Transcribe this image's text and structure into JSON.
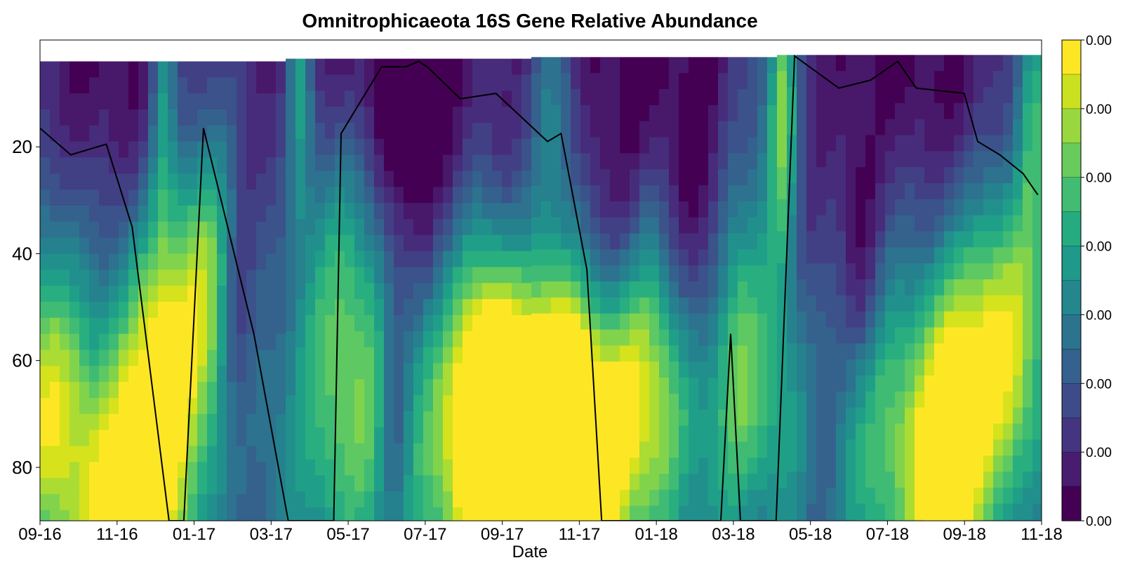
{
  "chart_data": {
    "type": "heatmap",
    "title": "Omnitrophicaeota 16S Gene Relative Abundance",
    "xlabel": "Date",
    "ylabel": "",
    "x_tick_labels": [
      "09-16",
      "11-16",
      "01-17",
      "03-17",
      "05-17",
      "07-17",
      "09-17",
      "11-17",
      "01-18",
      "03-18",
      "05-18",
      "07-18",
      "09-18",
      "11-18"
    ],
    "y_tick_labels": [
      "20",
      "40",
      "60",
      "80"
    ],
    "y_ticks": [
      20,
      40,
      60,
      80
    ],
    "ylim": [
      90,
      0
    ],
    "y_inverted": true,
    "colorbar_tick_labels": [
      "0.00",
      "0.00",
      "0.00",
      "0.00",
      "0.00",
      "0.00",
      "0.00",
      "0.00"
    ],
    "colormap": "viridis",
    "colormap_colors": [
      "#440154",
      "#481a6c",
      "#472f7d",
      "#414487",
      "#39568c",
      "#31688e",
      "#2a788e",
      "#23888e",
      "#1f988b",
      "#22a884",
      "#35b779",
      "#54c568",
      "#7ad151",
      "#a5db36",
      "#d2e21b",
      "#fde725"
    ],
    "line_series": {
      "color": "#000000",
      "x": [
        "2016-09-01",
        "2016-09-26",
        "2016-10-25",
        "2016-11-15",
        "2016-12-15",
        "2016-12-27",
        "2017-01-12",
        "2017-02-22",
        "2017-03-22",
        "2017-04-28",
        "2017-05-04",
        "2017-06-06",
        "2017-06-26",
        "2017-07-06",
        "2017-07-13",
        "2017-08-09",
        "2017-09-07",
        "2017-10-19",
        "2017-10-30",
        "2017-11-20",
        "2017-12-02",
        "2018-03-09",
        "2018-03-17",
        "2018-03-25",
        "2018-04-23",
        "2018-05-08",
        "2018-06-13",
        "2018-07-09",
        "2018-07-31",
        "2018-08-15",
        "2018-09-23",
        "2018-10-04",
        "2018-10-22",
        "2018-11-10",
        "2018-11-22"
      ],
      "y": [
        16.5,
        21.5,
        19.5,
        35,
        90,
        90,
        16.5,
        55,
        90,
        90,
        17.5,
        5,
        5,
        4,
        5,
        11,
        10,
        19,
        17.5,
        43,
        90,
        90,
        55,
        90,
        90,
        3,
        9,
        7.5,
        4,
        9,
        10,
        19,
        21.5,
        25,
        29
      ]
    }
  }
}
